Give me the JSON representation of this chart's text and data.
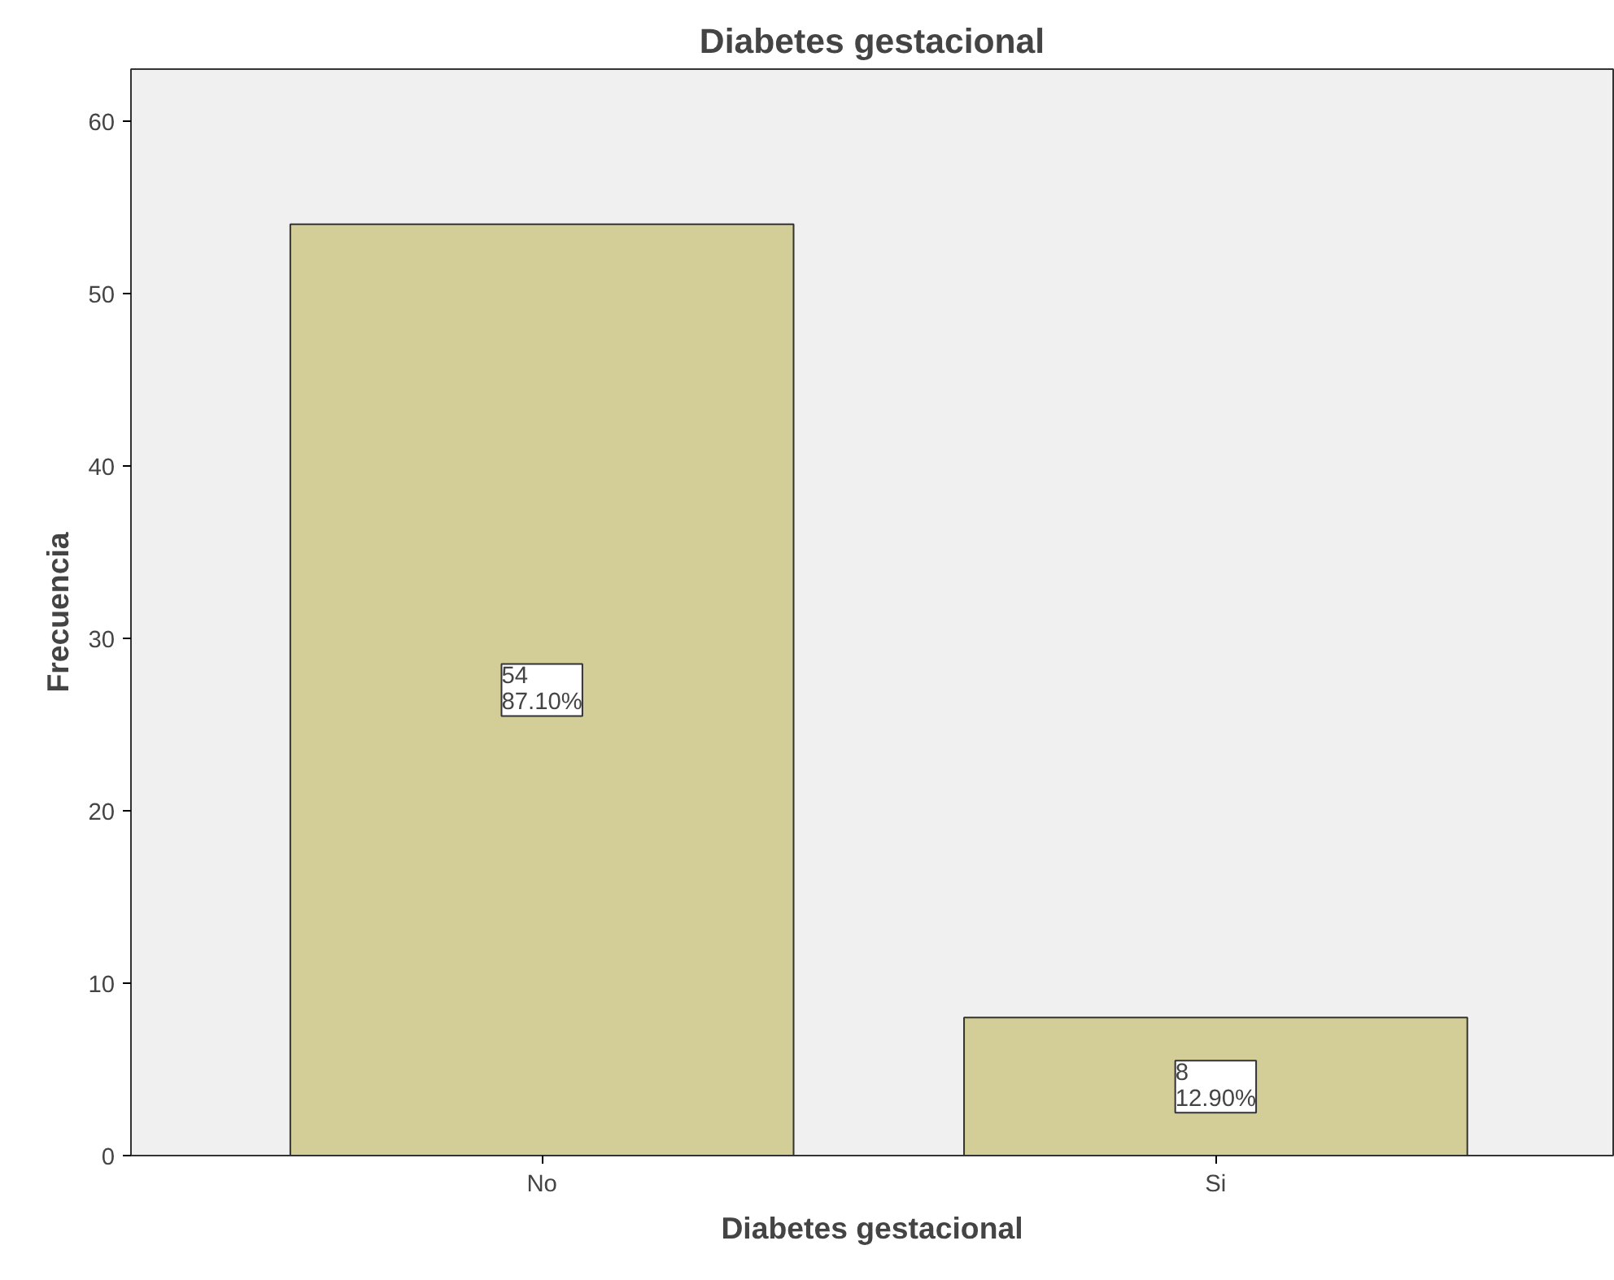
{
  "chart_data": {
    "type": "bar",
    "title": "Diabetes gestacional",
    "xlabel": "Diabetes gestacional",
    "ylabel": "Frecuencia",
    "categories": [
      "No",
      "Si"
    ],
    "values": [
      54,
      8
    ],
    "value_labels": [
      "54\n87.10%",
      "8\n12.90%"
    ],
    "color": "#d3ce97",
    "ylim": [
      0,
      63
    ],
    "yticks": [
      0,
      10,
      20,
      30,
      40,
      50,
      60
    ],
    "grid": false
  }
}
